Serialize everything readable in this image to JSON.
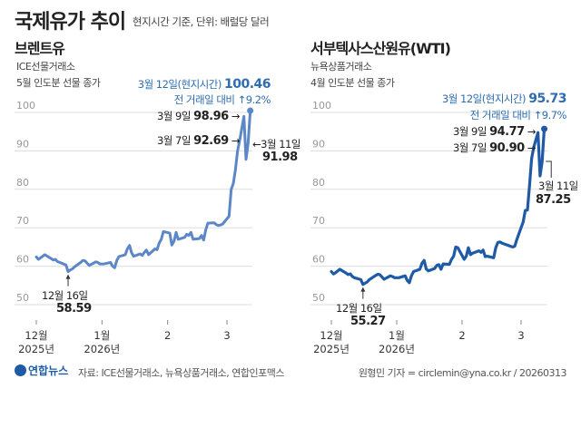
{
  "header": {
    "title": "국제유가 추이",
    "unit_note": "현지시간 기준, 단위: 배럴당 달러"
  },
  "footer": {
    "logo": "연합뉴스",
    "source": "자료: ICE선물거래소, 뉴욕상품거래소, 연합인포맥스",
    "credit": "원형민 기자 = circlemin@yna.co.kr / 20260313"
  },
  "colors": {
    "brent": "#5b86c8",
    "wti": "#1f5aa6",
    "annotation": "#2e6db0",
    "grid": "#dddddd"
  },
  "chart_data": [
    {
      "type": "line",
      "title": "브렌트유",
      "subtitle1": "ICE선물거래소",
      "subtitle2": "5월 인도분 선물 종가",
      "ylim": [
        50,
        100
      ],
      "yticks": [
        50,
        60,
        70,
        80,
        90,
        100
      ],
      "grid": true,
      "xticks": [
        {
          "date": "2025-12-01",
          "label1": "12월",
          "label2": "2025년"
        },
        {
          "date": "2026-01-01",
          "label1": "1월",
          "label2": "2026년"
        },
        {
          "date": "2026-02-01",
          "label1": "2",
          "label2": ""
        },
        {
          "date": "2026-03-01",
          "label1": "3",
          "label2": ""
        }
      ],
      "annotations": {
        "last_label": "3월 12일(현지시간)",
        "last_value": "100.46",
        "change": "전 거래일 대비 ↑9.2%",
        "mar9_label": "3월 9일",
        "mar9_value": "98.96",
        "mar7_label": "3월 7일",
        "mar7_value": "92.69",
        "mar11_label": "3월 11일",
        "mar11_value": "91.98",
        "low_label": "12월 16일",
        "low_value": "58.59"
      },
      "series": [
        [
          "2025-12-01",
          62.4
        ],
        [
          "2025-12-02",
          61.8
        ],
        [
          "2025-12-03",
          62.2
        ],
        [
          "2025-12-05",
          63.0
        ],
        [
          "2025-12-08",
          62.0
        ],
        [
          "2025-12-09",
          61.6
        ],
        [
          "2025-12-10",
          61.8
        ],
        [
          "2025-12-11",
          61.2
        ],
        [
          "2025-12-12",
          61.0
        ],
        [
          "2025-12-15",
          60.3
        ],
        [
          "2025-12-16",
          58.59
        ],
        [
          "2025-12-17",
          59.0
        ],
        [
          "2025-12-18",
          59.3
        ],
        [
          "2025-12-19",
          59.8
        ],
        [
          "2025-12-22",
          61.0
        ],
        [
          "2025-12-23",
          61.5
        ],
        [
          "2025-12-24",
          61.4
        ],
        [
          "2025-12-26",
          60.2
        ],
        [
          "2025-12-29",
          61.1
        ],
        [
          "2025-12-30",
          61.0
        ],
        [
          "2025-12-31",
          60.6
        ],
        [
          "2026-01-02",
          60.6
        ],
        [
          "2026-01-05",
          61.0
        ],
        [
          "2026-01-06",
          60.0
        ],
        [
          "2026-01-07",
          59.6
        ],
        [
          "2026-01-08",
          61.5
        ],
        [
          "2026-01-09",
          62.5
        ],
        [
          "2026-01-12",
          63.0
        ],
        [
          "2026-01-13",
          64.5
        ],
        [
          "2026-01-14",
          65.4
        ],
        [
          "2026-01-15",
          63.5
        ],
        [
          "2026-01-16",
          62.6
        ],
        [
          "2026-01-19",
          63.2
        ],
        [
          "2026-01-20",
          62.8
        ],
        [
          "2026-01-21",
          63.6
        ],
        [
          "2026-01-22",
          64.2
        ],
        [
          "2026-01-23",
          63.0
        ],
        [
          "2026-01-26",
          64.5
        ],
        [
          "2026-01-27",
          64.3
        ],
        [
          "2026-01-28",
          66.0
        ],
        [
          "2026-01-29",
          67.0
        ],
        [
          "2026-01-30",
          69.0
        ],
        [
          "2026-02-02",
          68.6
        ],
        [
          "2026-02-03",
          65.5
        ],
        [
          "2026-02-04",
          66.5
        ],
        [
          "2026-02-05",
          68.8
        ],
        [
          "2026-02-06",
          67.0
        ],
        [
          "2026-02-09",
          67.5
        ],
        [
          "2026-02-10",
          68.3
        ],
        [
          "2026-02-11",
          68.0
        ],
        [
          "2026-02-12",
          68.8
        ],
        [
          "2026-02-13",
          67.0
        ],
        [
          "2026-02-16",
          67.2
        ],
        [
          "2026-02-17",
          68.0
        ],
        [
          "2026-02-18",
          66.8
        ],
        [
          "2026-02-19",
          69.5
        ],
        [
          "2026-02-20",
          71.2
        ],
        [
          "2026-02-23",
          71.3
        ],
        [
          "2026-02-24",
          70.8
        ],
        [
          "2026-02-25",
          70.6
        ],
        [
          "2026-02-26",
          70.7
        ],
        [
          "2026-02-27",
          71.0
        ],
        [
          "2026-03-02",
          73.0
        ],
        [
          "2026-03-03",
          80.0
        ],
        [
          "2026-03-04",
          81.5
        ],
        [
          "2026-03-05",
          85.0
        ],
        [
          "2026-03-06",
          90.0
        ],
        [
          "2026-03-07",
          92.69
        ],
        [
          "2026-03-09",
          98.96
        ],
        [
          "2026-03-10",
          87.8
        ],
        [
          "2026-03-11",
          91.98
        ],
        [
          "2026-03-12",
          100.46
        ]
      ]
    },
    {
      "type": "line",
      "title": "서부텍사스산원유(WTI)",
      "subtitle1": "뉴욕상품거래소",
      "subtitle2": "4월 인도분 선물 종가",
      "ylim": [
        50,
        100
      ],
      "yticks": [
        50,
        60,
        70,
        80,
        90,
        100
      ],
      "grid": true,
      "xticks": [
        {
          "date": "2025-12-01",
          "label1": "12월",
          "label2": "2025년"
        },
        {
          "date": "2026-01-01",
          "label1": "1월",
          "label2": "2026년"
        },
        {
          "date": "2026-02-01",
          "label1": "2",
          "label2": ""
        },
        {
          "date": "2026-03-01",
          "label1": "3",
          "label2": ""
        }
      ],
      "annotations": {
        "last_label": "3월 12일(현지시간)",
        "last_value": "95.73",
        "change": "전 거래일 대비 ↑9.7%",
        "mar9_label": "3월 9일",
        "mar9_value": "94.77",
        "mar7_label": "3월 7일",
        "mar7_value": "90.90",
        "mar11_label": "3월 11일",
        "mar11_value": "87.25",
        "low_label": "12월 16일",
        "low_value": "55.27"
      },
      "series": [
        [
          "2025-12-01",
          58.6
        ],
        [
          "2025-12-02",
          58.0
        ],
        [
          "2025-12-03",
          58.3
        ],
        [
          "2025-12-05",
          59.2
        ],
        [
          "2025-12-08",
          58.2
        ],
        [
          "2025-12-09",
          57.8
        ],
        [
          "2025-12-10",
          58.0
        ],
        [
          "2025-12-11",
          57.3
        ],
        [
          "2025-12-12",
          57.0
        ],
        [
          "2025-12-15",
          56.5
        ],
        [
          "2025-12-16",
          55.27
        ],
        [
          "2025-12-17",
          55.6
        ],
        [
          "2025-12-18",
          55.9
        ],
        [
          "2025-12-19",
          56.5
        ],
        [
          "2025-12-22",
          57.6
        ],
        [
          "2025-12-23",
          57.9
        ],
        [
          "2025-12-24",
          57.8
        ],
        [
          "2025-12-26",
          56.6
        ],
        [
          "2025-12-29",
          57.5
        ],
        [
          "2025-12-30",
          57.3
        ],
        [
          "2025-12-31",
          57.0
        ],
        [
          "2026-01-02",
          57.0
        ],
        [
          "2026-01-05",
          57.5
        ],
        [
          "2026-01-06",
          56.3
        ],
        [
          "2026-01-07",
          55.7
        ],
        [
          "2026-01-08",
          57.5
        ],
        [
          "2026-01-09",
          58.6
        ],
        [
          "2026-01-12",
          59.2
        ],
        [
          "2026-01-13",
          60.8
        ],
        [
          "2026-01-14",
          61.5
        ],
        [
          "2026-01-15",
          59.3
        ],
        [
          "2026-01-16",
          58.8
        ],
        [
          "2026-01-19",
          59.4
        ],
        [
          "2026-01-20",
          60.2
        ],
        [
          "2026-01-21",
          60.4
        ],
        [
          "2026-01-22",
          59.2
        ],
        [
          "2026-01-23",
          60.6
        ],
        [
          "2026-01-26",
          60.5
        ],
        [
          "2026-01-27",
          61.8
        ],
        [
          "2026-01-28",
          62.6
        ],
        [
          "2026-01-29",
          65.0
        ],
        [
          "2026-01-30",
          64.8
        ],
        [
          "2026-02-02",
          61.8
        ],
        [
          "2026-02-03",
          62.6
        ],
        [
          "2026-02-04",
          64.8
        ],
        [
          "2026-02-05",
          63.0
        ],
        [
          "2026-02-06",
          63.4
        ],
        [
          "2026-02-09",
          64.0
        ],
        [
          "2026-02-10",
          63.6
        ],
        [
          "2026-02-11",
          64.2
        ],
        [
          "2026-02-12",
          62.5
        ],
        [
          "2026-02-13",
          62.6
        ],
        [
          "2026-02-16",
          62.2
        ],
        [
          "2026-02-17",
          64.8
        ],
        [
          "2026-02-18",
          66.2
        ],
        [
          "2026-02-19",
          66.3
        ],
        [
          "2026-02-20",
          66.0
        ],
        [
          "2026-02-23",
          65.4
        ],
        [
          "2026-02-24",
          65.2
        ],
        [
          "2026-02-25",
          65.0
        ],
        [
          "2026-02-26",
          65.2
        ],
        [
          "2026-02-27",
          67.0
        ],
        [
          "2026-03-02",
          71.5
        ],
        [
          "2026-03-03",
          74.5
        ],
        [
          "2026-03-04",
          74.6
        ],
        [
          "2026-03-05",
          81.0
        ],
        [
          "2026-03-06",
          88.0
        ],
        [
          "2026-03-07",
          90.9
        ],
        [
          "2026-03-09",
          94.77
        ],
        [
          "2026-03-10",
          83.5
        ],
        [
          "2026-03-11",
          87.25
        ],
        [
          "2026-03-12",
          95.73
        ]
      ]
    }
  ]
}
